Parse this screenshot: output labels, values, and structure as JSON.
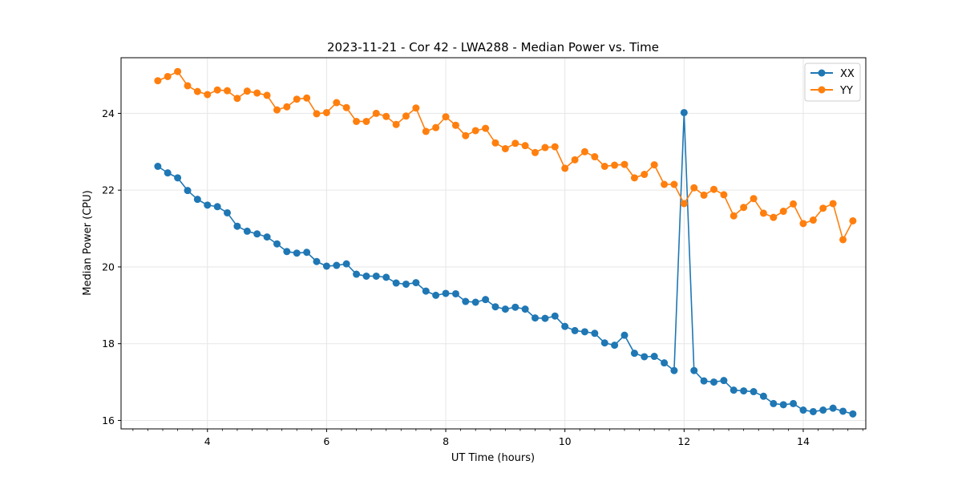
{
  "chart_data": {
    "type": "line",
    "title": "2023-11-21 - Cor 42 - LWA288 - Median Power vs. Time",
    "xlabel": "UT Time (hours)",
    "ylabel": "Median Power (CPU)",
    "xlim": [
      2.55,
      15.05
    ],
    "ylim": [
      15.78,
      25.45
    ],
    "xticks": [
      4,
      6,
      8,
      10,
      12,
      14
    ],
    "xtick_labels": [
      "4",
      "6",
      "8",
      "10",
      "12",
      "14"
    ],
    "yticks": [
      16,
      18,
      20,
      22,
      24
    ],
    "ytick_labels": [
      "16",
      "18",
      "20",
      "22",
      "24"
    ],
    "grid": true,
    "legend_position": "top-right",
    "x": [
      3.167,
      3.333,
      3.5,
      3.667,
      3.833,
      4.0,
      4.167,
      4.333,
      4.5,
      4.667,
      4.833,
      5.0,
      5.167,
      5.333,
      5.5,
      5.667,
      5.833,
      6.0,
      6.167,
      6.333,
      6.5,
      6.667,
      6.833,
      7.0,
      7.167,
      7.333,
      7.5,
      7.667,
      7.833,
      8.0,
      8.167,
      8.333,
      8.5,
      8.667,
      8.833,
      9.0,
      9.167,
      9.333,
      9.5,
      9.667,
      9.833,
      10.0,
      10.167,
      10.333,
      10.5,
      10.667,
      10.833,
      11.0,
      11.167,
      11.333,
      11.5,
      11.667,
      11.833,
      12.0,
      12.167,
      12.333,
      12.5,
      12.667,
      12.833,
      13.0,
      13.167,
      13.333,
      13.5,
      13.667,
      13.833,
      14.0,
      14.167,
      14.333,
      14.5,
      14.667,
      14.833
    ],
    "series": [
      {
        "name": "XX",
        "color": "#1f77b4",
        "values": [
          22.62,
          22.45,
          22.32,
          21.99,
          21.76,
          21.61,
          21.57,
          21.41,
          21.06,
          20.93,
          20.86,
          20.78,
          20.6,
          20.4,
          20.36,
          20.38,
          20.14,
          20.02,
          20.04,
          20.08,
          19.81,
          19.76,
          19.76,
          19.73,
          19.58,
          19.55,
          19.59,
          19.37,
          19.26,
          19.31,
          19.3,
          19.1,
          19.08,
          19.15,
          18.96,
          18.9,
          18.95,
          18.9,
          18.67,
          18.66,
          18.72,
          18.45,
          18.34,
          18.31,
          18.27,
          18.02,
          17.96,
          18.22,
          17.75,
          17.66,
          17.67,
          17.5,
          17.3,
          24.02,
          17.3,
          17.03,
          17.0,
          17.04,
          16.79,
          16.77,
          16.75,
          16.63,
          16.44,
          16.41,
          16.44,
          16.27,
          16.23,
          16.27,
          16.32,
          16.24,
          16.17
        ]
      },
      {
        "name": "YY",
        "color": "#ff7f0e",
        "values": [
          24.85,
          24.96,
          25.09,
          24.72,
          24.57,
          24.49,
          24.61,
          24.59,
          24.39,
          24.58,
          24.53,
          24.47,
          24.09,
          24.17,
          24.37,
          24.4,
          23.99,
          24.02,
          24.28,
          24.15,
          23.79,
          23.79,
          24.0,
          23.92,
          23.71,
          23.93,
          24.14,
          23.53,
          23.63,
          23.91,
          23.69,
          23.42,
          23.55,
          23.61,
          23.23,
          23.08,
          23.22,
          23.16,
          22.98,
          23.11,
          23.13,
          22.57,
          22.79,
          23.0,
          22.87,
          22.62,
          22.65,
          22.67,
          22.32,
          22.41,
          22.66,
          22.15,
          22.15,
          21.65,
          22.06,
          21.87,
          22.02,
          21.88,
          21.33,
          21.55,
          21.78,
          21.4,
          21.29,
          21.45,
          21.64,
          21.13,
          21.22,
          21.53,
          21.65,
          20.71,
          21.2
        ]
      }
    ]
  }
}
